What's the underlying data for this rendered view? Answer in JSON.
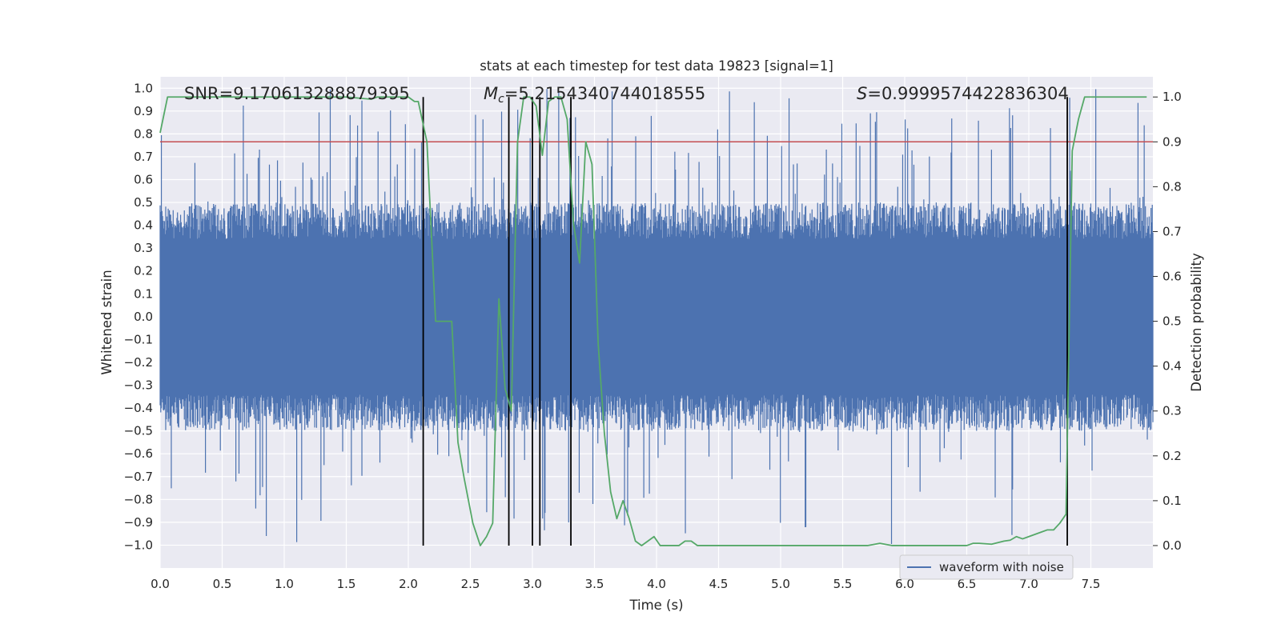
{
  "chart_data": {
    "type": "line",
    "title": "stats at each timestep for test data 19823 [signal=1]",
    "xlabel": "Time (s)",
    "ylabel": "Whitened strain",
    "y2label": "Detection probability",
    "xlim": [
      0.0,
      8.0
    ],
    "ylim": [
      -1.1,
      1.05
    ],
    "y2lim": [
      -0.05,
      1.045
    ],
    "x_ticks": [
      "0.0",
      "0.5",
      "1.0",
      "1.5",
      "2.0",
      "2.5",
      "3.0",
      "3.5",
      "4.0",
      "4.5",
      "5.0",
      "5.5",
      "6.0",
      "6.5",
      "7.0",
      "7.5"
    ],
    "y_ticks": [
      "1.0",
      "0.9",
      "0.8",
      "0.7",
      "0.6",
      "0.5",
      "0.4",
      "0.3",
      "0.2",
      "0.1",
      "0.0",
      "-0.1",
      "-0.2",
      "-0.3",
      "-0.4",
      "-0.5",
      "-0.6",
      "-0.7",
      "-0.8",
      "-0.9",
      "-1.0"
    ],
    "y2_ticks": [
      "1.0",
      "0.9",
      "0.8",
      "0.7",
      "0.6",
      "0.5",
      "0.4",
      "0.3",
      "0.2",
      "0.1",
      "0.0"
    ],
    "annotations": {
      "snr": "SNR=9.170613288879395",
      "mc_prefix": "M",
      "mc_sub": "c",
      "mc_value": "=5.2154340744018555",
      "s_prefix": "S",
      "s_value": "=0.9999574422836304"
    },
    "legend": {
      "label": "waveform with noise",
      "position": "lower-right"
    },
    "threshold": 0.9,
    "vertical_lines_x": [
      2.12,
      2.81,
      3.0,
      3.06,
      3.31,
      7.31
    ],
    "waveform": {
      "name": "waveform with noise",
      "color": "#4c72b0",
      "x_range": [
        0.0,
        8.0
      ],
      "n_samples": 1600,
      "seed": 19823,
      "bulk_envelope": 0.4,
      "peak_max": 1.0
    },
    "detection_probability": {
      "name": "detection probability",
      "color": "#55a868",
      "x": [
        0.0,
        0.06,
        0.12,
        0.5,
        1.0,
        1.5,
        1.7,
        1.75,
        2.0,
        2.05,
        2.08,
        2.15,
        2.22,
        2.27,
        2.31,
        2.35,
        2.4,
        2.45,
        2.52,
        2.58,
        2.63,
        2.68,
        2.73,
        2.78,
        2.83,
        2.88,
        2.93,
        2.98,
        3.03,
        3.08,
        3.13,
        3.18,
        3.23,
        3.28,
        3.33,
        3.38,
        3.43,
        3.48,
        3.53,
        3.58,
        3.63,
        3.68,
        3.73,
        3.78,
        3.83,
        3.88,
        3.93,
        3.98,
        4.03,
        4.08,
        4.13,
        4.18,
        4.23,
        4.28,
        4.33,
        4.38,
        4.43,
        4.5,
        4.6,
        4.7,
        4.8,
        4.9,
        5.0,
        5.2,
        5.4,
        5.6,
        5.7,
        5.8,
        5.9,
        6.0,
        6.2,
        6.4,
        6.5,
        6.55,
        6.6,
        6.7,
        6.8,
        6.85,
        6.9,
        6.95,
        7.0,
        7.1,
        7.15,
        7.2,
        7.25,
        7.3,
        7.35,
        7.4,
        7.45,
        7.5,
        7.7,
        7.95
      ],
      "y": [
        0.92,
        1.0,
        1.0,
        1.0,
        1.0,
        1.0,
        0.995,
        1.0,
        1.0,
        0.99,
        0.99,
        0.9,
        0.5,
        0.5,
        0.5,
        0.5,
        0.23,
        0.15,
        0.05,
        0.0,
        0.02,
        0.05,
        0.55,
        0.35,
        0.3,
        0.9,
        1.0,
        1.0,
        0.98,
        0.87,
        0.99,
        1.0,
        1.0,
        0.95,
        0.72,
        0.63,
        0.9,
        0.85,
        0.45,
        0.25,
        0.12,
        0.06,
        0.1,
        0.06,
        0.01,
        0.0,
        0.01,
        0.02,
        0.0,
        0.0,
        0.0,
        0.0,
        0.01,
        0.01,
        0.0,
        0.0,
        0.0,
        0.0,
        0.0,
        0.0,
        0.0,
        0.0,
        0.0,
        0.0,
        0.0,
        0.0,
        0.0,
        0.005,
        0.0,
        0.0,
        0.0,
        0.0,
        0.0,
        0.005,
        0.005,
        0.003,
        0.01,
        0.012,
        0.02,
        0.015,
        0.02,
        0.03,
        0.035,
        0.035,
        0.05,
        0.07,
        0.88,
        0.95,
        1.0,
        1.0,
        1.0,
        1.0
      ]
    }
  }
}
